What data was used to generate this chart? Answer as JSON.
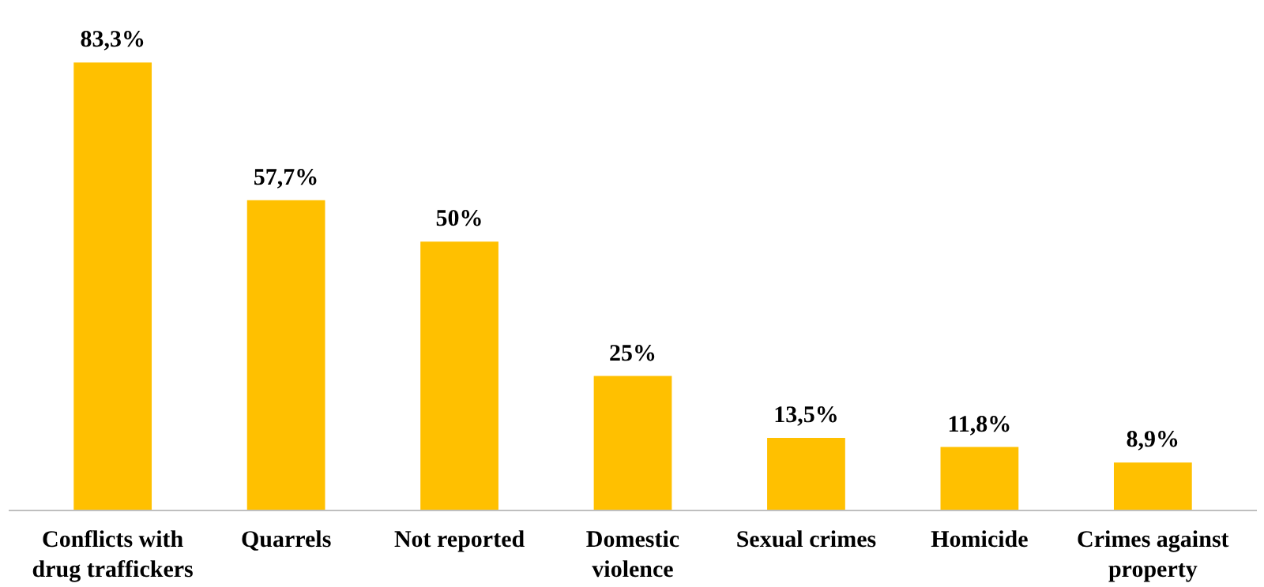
{
  "chart_data": {
    "type": "bar",
    "categories": [
      "Conflicts with drug traffickers",
      "Quarrels",
      "Not reported",
      "Domestic violence",
      "Sexual crimes",
      "Homicide",
      "Crimes against property"
    ],
    "values": [
      83.3,
      57.7,
      50,
      25,
      13.5,
      11.8,
      8.9
    ],
    "value_labels": [
      "83,3%",
      "57,7%",
      "50%",
      "25%",
      "13,5%",
      "11,8%",
      "8,9%"
    ],
    "color": "#ffc000",
    "grid": false
  }
}
